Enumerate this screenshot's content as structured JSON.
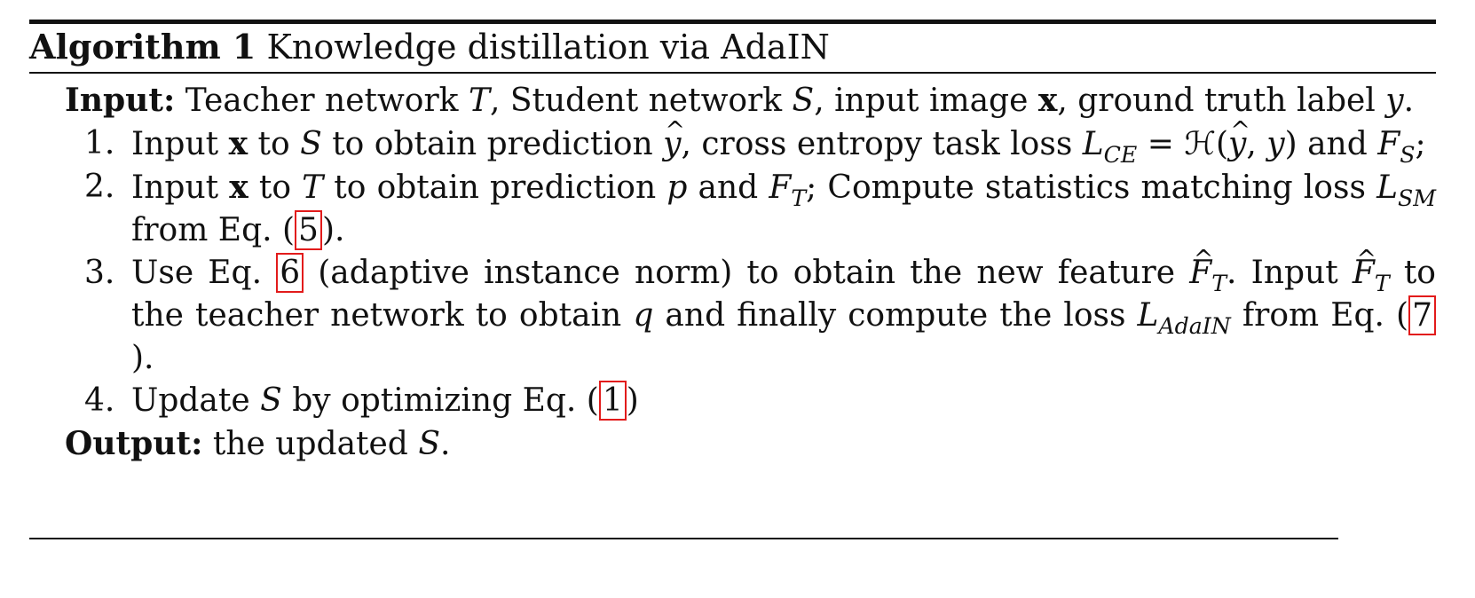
{
  "header": {
    "label": "Algorithm 1",
    "title": "Knowledge distillation via AdaIN"
  },
  "input": {
    "key": "Input:",
    "text_1": "Teacher network",
    "T": "T",
    "text_2": ", Student network",
    "S": "S",
    "text_3": ", input image",
    "x": "x",
    "text_4": ", ground truth label",
    "y": "y",
    "text_5": "."
  },
  "steps": [
    {
      "number": "1.",
      "t1": "Input",
      "x": "x",
      "t2": "to",
      "S": "S",
      "t3": "to obtain prediction",
      "yhat": "y",
      "t4": ", cross entropy task loss",
      "L": "L",
      "L_sub": "CE",
      "eq": " = ℋ(",
      "yhat2": "y",
      "eq2": ", ",
      "y": "y",
      "eq3": ")",
      "t5": "and",
      "F": "F",
      "F_sub": "S",
      "t6": ";"
    },
    {
      "number": "2.",
      "t1": "Input",
      "x": "x",
      "t2": "to",
      "T": "T",
      "t3": "to obtain prediction",
      "p": "p",
      "t4": "and",
      "F": "F",
      "F_sub": "T",
      "t5": "; Compute statistics matching loss",
      "L": "L",
      "L_sub": "SM",
      "t6": "from Eq. (",
      "ref": "5",
      "t7": ")."
    },
    {
      "number": "3.",
      "t1": "Use Eq.",
      "ref1": "6",
      "t2": "(adaptive instance norm) to obtain the new feature",
      "F": "F",
      "F_sub": "T",
      "t3": ". Input",
      "F2": "F",
      "F2_sub": "T",
      "t4": "to the teacher network to obtain",
      "q": "q",
      "t5": "and finally compute the loss",
      "L": "L",
      "L_sub": "AdaIN",
      "t6": "from Eq. (",
      "ref2": "7",
      "t7": ")."
    },
    {
      "number": "4.",
      "t1": "Update",
      "S": "S",
      "t2": "by optimizing Eq. (",
      "ref": "1",
      "t3": ")"
    }
  ],
  "output": {
    "key": "Output:",
    "text_1": "the updated",
    "S": "S",
    "text_2": "."
  },
  "colors": {
    "text": "#111111",
    "reference_box": "#e21b1b"
  }
}
